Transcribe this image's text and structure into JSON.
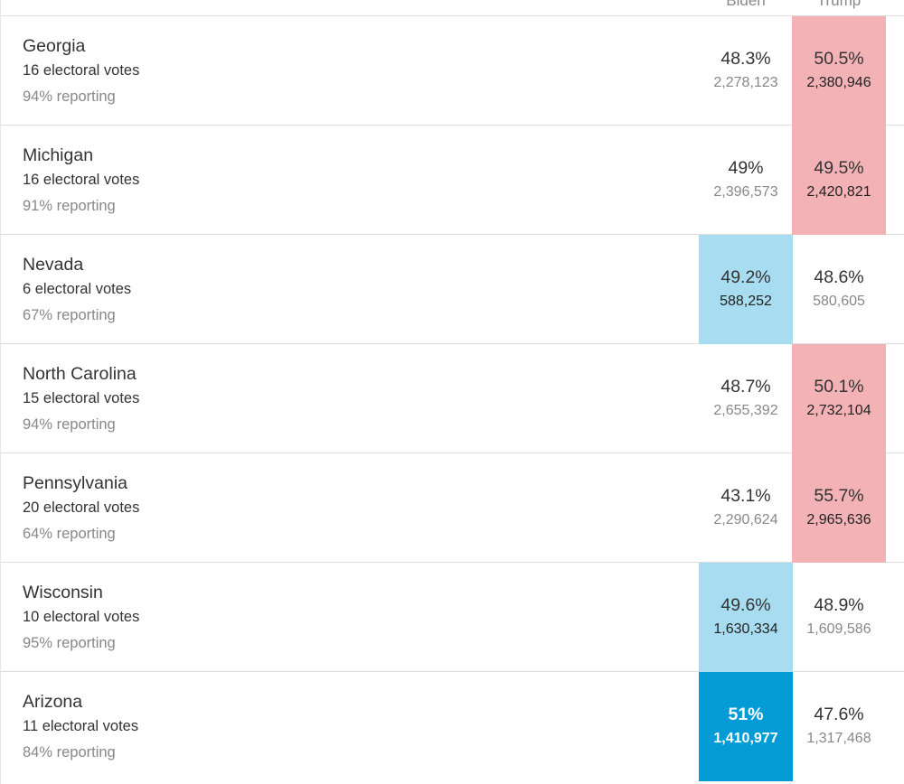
{
  "header": {
    "candidate_left": "Biden",
    "candidate_right": "Trump"
  },
  "colors": {
    "trump_lead": "#f3b2b5",
    "biden_lead": "#a8dcf0",
    "biden_called": "#039bd6"
  },
  "states": [
    {
      "name": "Georgia",
      "electoral": "16 electoral votes",
      "reporting": "94% reporting",
      "biden_pct": "48.3%",
      "biden_votes": "2,278,123",
      "trump_pct": "50.5%",
      "trump_votes": "2,380,946",
      "leader": "trump"
    },
    {
      "name": "Michigan",
      "electoral": "16 electoral votes",
      "reporting": "91% reporting",
      "biden_pct": "49%",
      "biden_votes": "2,396,573",
      "trump_pct": "49.5%",
      "trump_votes": "2,420,821",
      "leader": "trump"
    },
    {
      "name": "Nevada",
      "electoral": "6 electoral votes",
      "reporting": "67% reporting",
      "biden_pct": "49.2%",
      "biden_votes": "588,252",
      "trump_pct": "48.6%",
      "trump_votes": "580,605",
      "leader": "biden"
    },
    {
      "name": "North Carolina",
      "electoral": "15 electoral votes",
      "reporting": "94% reporting",
      "biden_pct": "48.7%",
      "biden_votes": "2,655,392",
      "trump_pct": "50.1%",
      "trump_votes": "2,732,104",
      "leader": "trump"
    },
    {
      "name": "Pennsylvania",
      "electoral": "20 electoral votes",
      "reporting": "64% reporting",
      "biden_pct": "43.1%",
      "biden_votes": "2,290,624",
      "trump_pct": "55.7%",
      "trump_votes": "2,965,636",
      "leader": "trump"
    },
    {
      "name": "Wisconsin",
      "electoral": "10 electoral votes",
      "reporting": "95% reporting",
      "biden_pct": "49.6%",
      "biden_votes": "1,630,334",
      "trump_pct": "48.9%",
      "trump_votes": "1,609,586",
      "leader": "biden"
    },
    {
      "name": "Arizona",
      "electoral": "11 electoral votes",
      "reporting": "84% reporting",
      "biden_pct": "51%",
      "biden_votes": "1,410,977",
      "trump_pct": "47.6%",
      "trump_votes": "1,317,468",
      "leader": "biden-called"
    }
  ]
}
